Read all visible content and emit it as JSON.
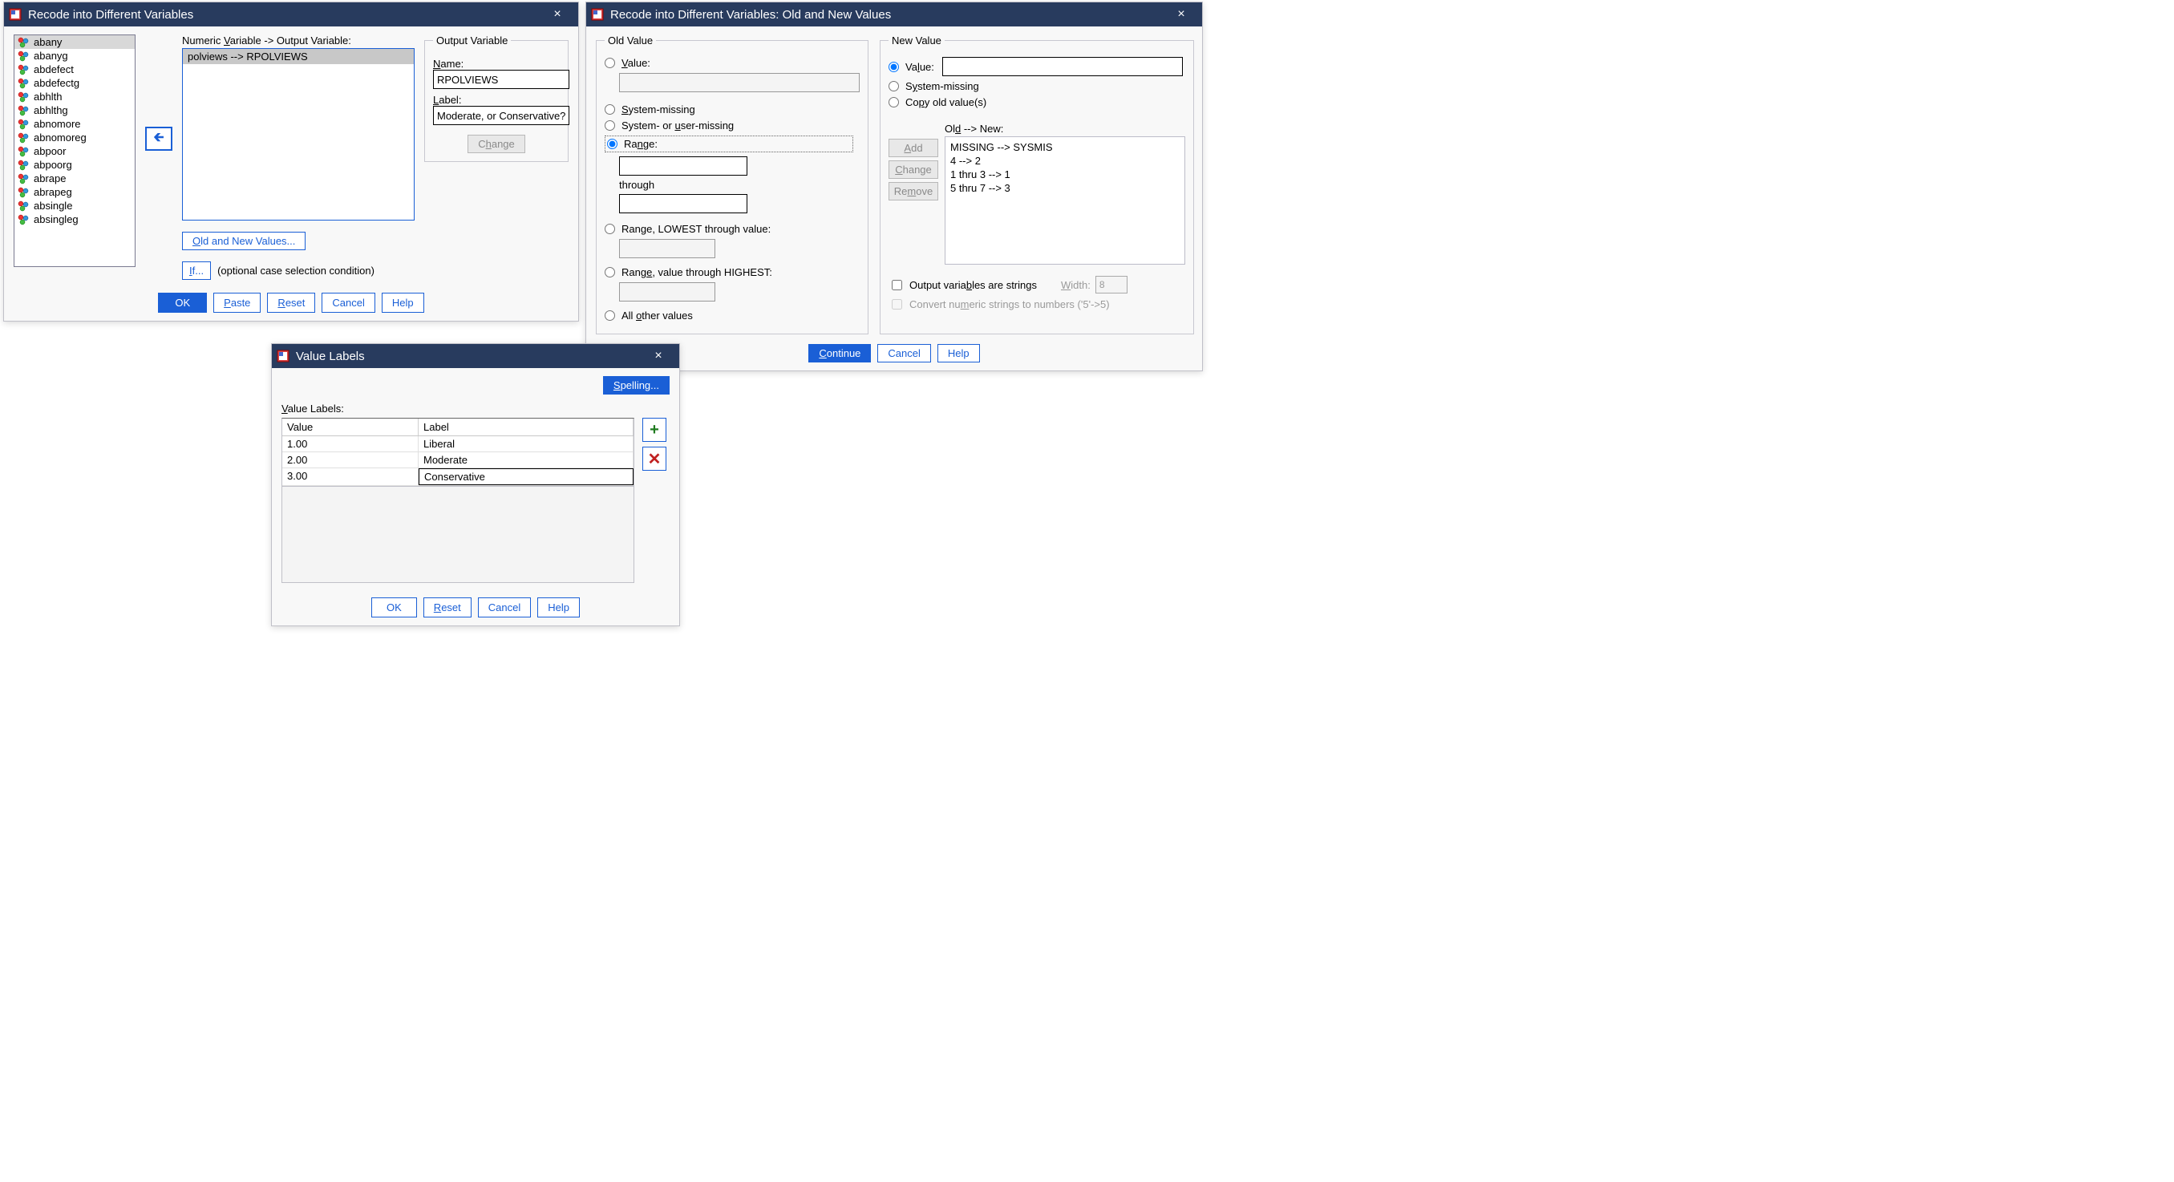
{
  "dialog1": {
    "title": "Recode into Different Variables",
    "varlist": [
      "abany",
      "abanyg",
      "abdefect",
      "abdefectg",
      "abhlth",
      "abhlthg",
      "abnomore",
      "abnomoreg",
      "abpoor",
      "abpoorg",
      "abrape",
      "abrapeg",
      "absingle",
      "absingleg"
    ],
    "selected_var": "abany",
    "section_label_pre": "Numeric ",
    "section_label_ul": "V",
    "section_label_post": "ariable -> Output Variable:",
    "mapping": "polviews --> RPOLVIEWS",
    "output_legend": "Output Variable",
    "name_label_ul": "N",
    "name_label_post": "ame:",
    "name_value": "RPOLVIEWS",
    "label_label_ul": "L",
    "label_label_post": "abel:",
    "label_value": "Moderate, or Conservative?",
    "change_btn_ul": "h",
    "change_btn_pre": "C",
    "change_btn_post": "ange",
    "oldnew_btn_ul": "O",
    "oldnew_btn_post": "ld and New Values...",
    "if_btn_ul": "I",
    "if_btn_post": "f...",
    "if_hint": "(optional case selection condition)",
    "ok": "OK",
    "paste_ul": "P",
    "paste_post": "aste",
    "reset_ul": "R",
    "reset_post": "eset",
    "cancel": "Cancel",
    "help": "Help"
  },
  "dialog2": {
    "title": "Recode into Different Variables: Old and New Values",
    "old_legend": "Old Value",
    "new_legend": "New Value",
    "opt_value_ul": "V",
    "opt_value_post": "alue:",
    "opt_sysmiss_ul": "S",
    "opt_sysmiss_post": "ystem-missing",
    "opt_sysuser_pre": "System- or ",
    "opt_sysuser_ul": "u",
    "opt_sysuser_post": "ser-missing",
    "opt_range_ul": "n",
    "opt_range_pre": "Ra",
    "opt_range_post": "ge:",
    "through": "through",
    "opt_range_lo_ul": "g",
    "opt_range_lo_pre": "Ran",
    "opt_range_lo_post": "e, LOWEST through value:",
    "opt_range_hi_ul": "e",
    "opt_range_hi_pre": "Rang",
    "opt_range_hi_post": ", value through HIGHEST:",
    "opt_allother_ul": "o",
    "opt_allother_pre": "All ",
    "opt_allother_post": "ther values",
    "nv_value_ul": "l",
    "nv_value_pre": "Va",
    "nv_value_post": "ue:",
    "nv_sysmiss_ul": "y",
    "nv_sysmiss_pre": "S",
    "nv_sysmiss_post": "stem-missing",
    "nv_copy_ul": "p",
    "nv_copy_pre": "Co",
    "nv_copy_post": "y old value(s)",
    "oldnew_hdr_ul": "d",
    "oldnew_hdr_pre": "Ol",
    "oldnew_hdr_post": " --> New:",
    "rules": [
      "MISSING --> SYSMIS",
      "4 --> 2",
      "1 thru 3 --> 1",
      "5 thru 7 --> 3"
    ],
    "add_ul": "A",
    "add_post": "dd",
    "change_ul": "C",
    "change_post": "hange",
    "remove_ul": "m",
    "remove_pre": "Re",
    "remove_post": "ove",
    "outstr_ul": "b",
    "outstr_pre": "Output varia",
    "outstr_post": "les are strings",
    "width_ul": "W",
    "width_post": "idth:",
    "width_val": "8",
    "convnum_ul": "m",
    "convnum_pre": "Convert nu",
    "convnum_post": "eric strings to numbers ('5'->5)",
    "continue_ul": "C",
    "continue_post": "ontinue",
    "cancel": "Cancel",
    "help": "Help"
  },
  "dialog3": {
    "title": "Value Labels",
    "spelling_ul": "S",
    "spelling_post": "pelling...",
    "vl_label_ul": "V",
    "vl_label_post": "alue Labels:",
    "col_value": "Value",
    "col_label": "Label",
    "rows": [
      {
        "v": "1.00",
        "l": "Liberal"
      },
      {
        "v": "2.00",
        "l": "Moderate"
      },
      {
        "v": "3.00",
        "l": "Conservative"
      }
    ],
    "ok": "OK",
    "reset_ul": "R",
    "reset_post": "eset",
    "cancel": "Cancel",
    "help": "Help"
  }
}
